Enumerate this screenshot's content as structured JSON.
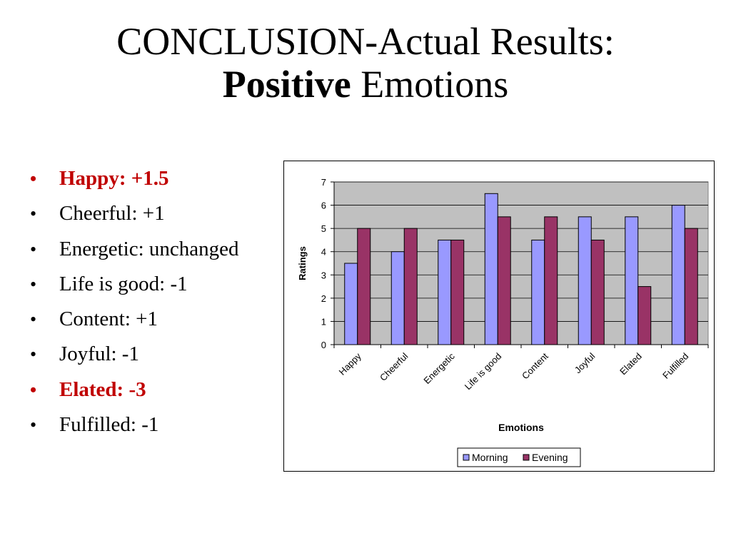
{
  "slide": {
    "title_line1": "CONCLUSION-Actual Results:",
    "title_bold": "Positive",
    "title_rest": " Emotions"
  },
  "bullets": [
    {
      "text": "Happy: +1.5",
      "highlight": true
    },
    {
      "text": "Cheerful: +1",
      "highlight": false
    },
    {
      "text": "Energetic: unchanged",
      "highlight": false
    },
    {
      "text": "Life is good: -1",
      "highlight": false
    },
    {
      "text": "Content: +1",
      "highlight": false
    },
    {
      "text": "Joyful: -1",
      "highlight": false
    },
    {
      "text": "Elated: -3",
      "highlight": true
    },
    {
      "text": "Fulfilled: -1",
      "highlight": false
    }
  ],
  "bullet_glyph": "•",
  "colors": {
    "highlight_text": "#c00000",
    "plot_background": "#c0c0c0",
    "morning": "#9999ff",
    "evening": "#993366"
  },
  "chart_data": {
    "type": "bar",
    "categories": [
      "Happy",
      "Cheerful",
      "Energetic",
      "Life is good",
      "Content",
      "Joyful",
      "Elated",
      "Fulfilled"
    ],
    "series": [
      {
        "name": "Morning",
        "values": [
          3.5,
          4,
          4.5,
          6.5,
          4.5,
          5.5,
          5.5,
          6
        ]
      },
      {
        "name": "Evening",
        "values": [
          5,
          5,
          4.5,
          5.5,
          5.5,
          4.5,
          2.5,
          5
        ]
      }
    ],
    "xlabel": "Emotions",
    "ylabel": "Ratings",
    "ylim": [
      0,
      7
    ],
    "yticks": [
      0,
      1,
      2,
      3,
      4,
      5,
      6,
      7
    ],
    "grid": true,
    "legend_position": "bottom"
  }
}
